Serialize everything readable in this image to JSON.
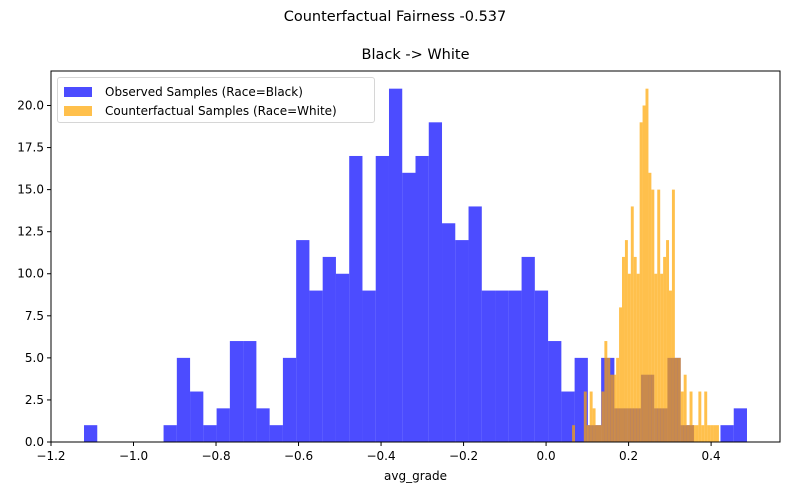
{
  "chart_data": {
    "type": "bar",
    "subtype": "histogram-overlay",
    "suptitle": "Counterfactual Fairness -0.537",
    "title": "Black -> White",
    "xlabel": "avg_grade",
    "ylabel": "",
    "xlim": [
      -1.2,
      0.567
    ],
    "ylim": [
      0,
      22.05
    ],
    "xticks": [
      -1.2,
      -1.0,
      -0.8,
      -0.6,
      -0.4,
      -0.2,
      0.0,
      0.2,
      0.4
    ],
    "xtick_labels": [
      "−1.2",
      "−1.0",
      "−0.8",
      "−0.6",
      "−0.4",
      "−0.2",
      "0.0",
      "0.2",
      "0.4"
    ],
    "yticks": [
      0,
      2.5,
      5,
      7.5,
      10,
      12.5,
      15,
      17.5,
      20
    ],
    "ytick_labels": [
      "0.0",
      "2.5",
      "5.0",
      "7.5",
      "10.0",
      "12.5",
      "15.0",
      "17.5",
      "20.0"
    ],
    "grid": false,
    "legend_position": "upper left",
    "series": [
      {
        "name": "Observed Samples (Race=Black)",
        "color": "#0000ff",
        "alpha": 0.7,
        "bin_start": -1.12,
        "bin_width": 0.03214,
        "values": [
          1,
          0,
          0,
          0,
          0,
          0,
          1,
          5,
          3,
          1,
          2,
          6,
          6,
          2,
          1,
          5,
          12,
          9,
          11,
          10,
          17,
          9,
          17,
          21,
          16,
          17,
          19,
          13,
          12,
          14,
          9,
          9,
          9,
          11,
          9,
          6,
          3,
          5,
          1,
          5,
          2,
          2,
          4,
          2,
          5,
          1,
          0,
          0,
          1,
          2
        ]
      },
      {
        "name": "Counterfactual Samples (Race=White)",
        "color": "#ffa500",
        "alpha": 0.7,
        "bin_start": 0.063,
        "bin_width": 0.00712,
        "values": [
          1,
          0,
          0,
          0,
          3,
          1,
          3,
          2,
          1,
          1,
          3,
          6,
          5,
          4,
          4,
          5,
          8,
          11,
          12,
          10,
          14,
          11,
          10,
          19,
          20,
          21,
          16,
          15,
          10,
          15,
          10,
          11,
          12,
          9,
          15,
          5,
          5,
          3,
          4,
          1,
          3,
          1,
          1,
          3,
          1,
          3,
          1,
          1,
          1,
          1
        ]
      }
    ]
  }
}
